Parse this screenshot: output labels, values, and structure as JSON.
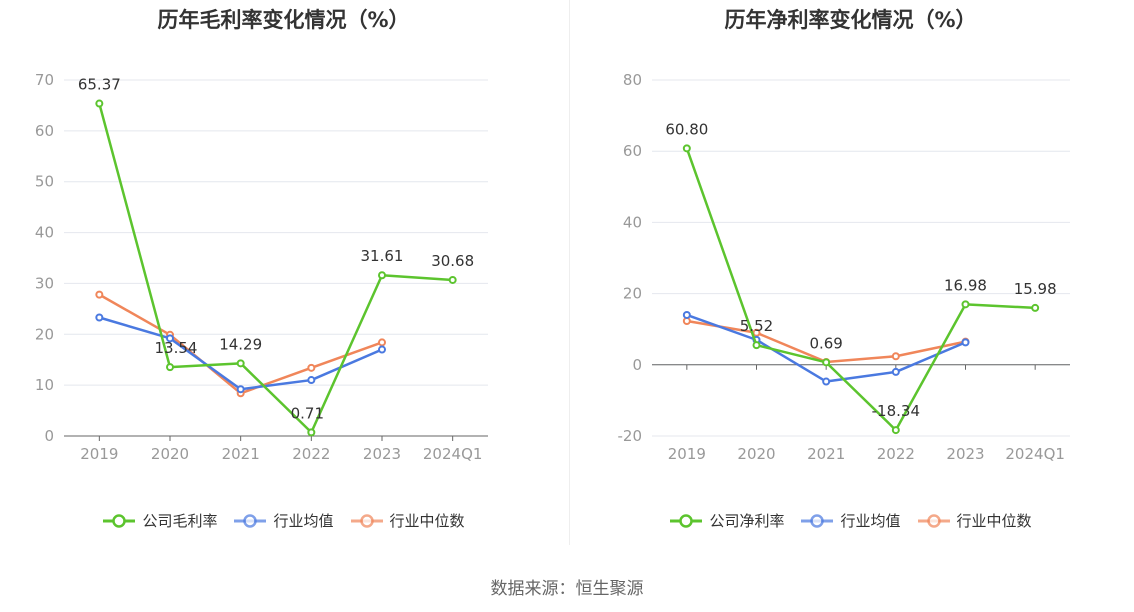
{
  "colors": {
    "company": "#5cc42e",
    "avg": "#4a79e0",
    "median": "#f0865a",
    "grid": "#e4e7ee",
    "axis": "#666666",
    "text": "#333333",
    "tick": "#999999"
  },
  "source": "数据来源：恒生聚源",
  "chart_data": [
    {
      "type": "line",
      "title": "历年毛利率变化情况（%）",
      "categories": [
        "2019",
        "2020",
        "2021",
        "2022",
        "2023",
        "2024Q1"
      ],
      "ylim": [
        0,
        70
      ],
      "yticks": [
        0,
        10,
        20,
        30,
        40,
        50,
        60,
        70
      ],
      "series": [
        {
          "name": "公司毛利率",
          "values": [
            65.37,
            13.54,
            14.29,
            0.71,
            31.61,
            30.68
          ],
          "labels": [
            "65.37",
            "13.54",
            "14.29",
            "0.71",
            "31.61",
            "30.68"
          ]
        },
        {
          "name": "行业均值",
          "values": [
            23.3,
            19.2,
            9.2,
            11.0,
            17.0,
            null
          ]
        },
        {
          "name": "行业中位数",
          "values": [
            27.8,
            19.9,
            8.4,
            13.4,
            18.4,
            null
          ]
        }
      ]
    },
    {
      "type": "line",
      "title": "历年净利率变化情况（%）",
      "categories": [
        "2019",
        "2020",
        "2021",
        "2022",
        "2023",
        "2024Q1"
      ],
      "ylim": [
        -20,
        80
      ],
      "yticks": [
        -20,
        0,
        20,
        40,
        60,
        80
      ],
      "series": [
        {
          "name": "公司净利率",
          "values": [
            60.8,
            5.52,
            0.69,
            -18.34,
            16.98,
            15.98
          ],
          "labels": [
            "60.80",
            "5.52",
            "0.69",
            "-18.34",
            "16.98",
            "15.98"
          ]
        },
        {
          "name": "行业均值",
          "values": [
            14.0,
            7.0,
            -4.7,
            -2.0,
            6.3,
            null
          ]
        },
        {
          "name": "行业中位数",
          "values": [
            12.3,
            9.0,
            0.8,
            2.4,
            6.5,
            null
          ]
        }
      ]
    }
  ]
}
